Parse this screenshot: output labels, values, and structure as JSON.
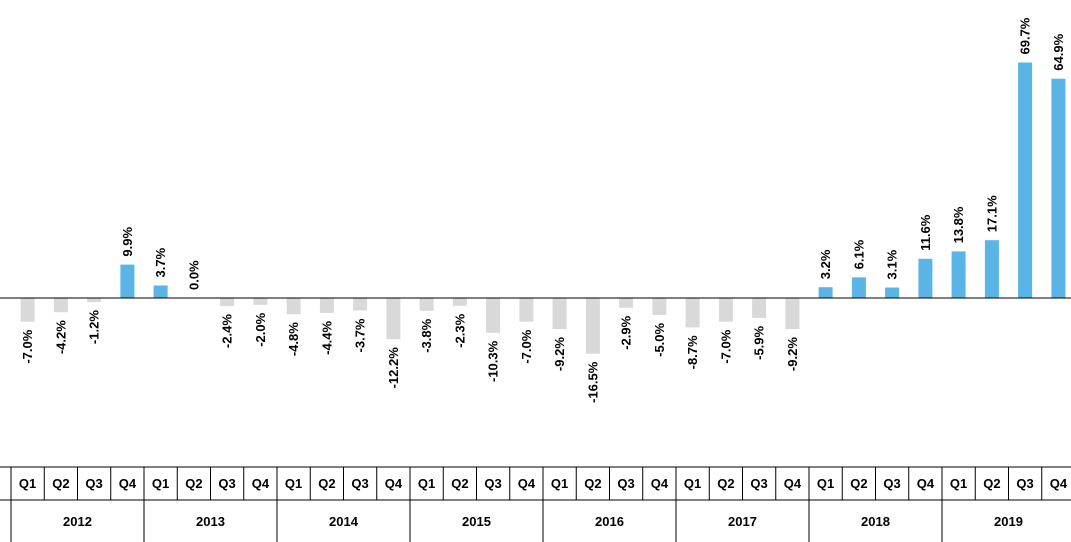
{
  "chart_data": {
    "type": "bar",
    "title": "",
    "xlabel": "",
    "ylabel": "",
    "ylim": [
      -75,
      75
    ],
    "grid": false,
    "legend": "none",
    "colors": {
      "positive": "#5ab4e5",
      "negative": "#d9d9d9",
      "axis": "#000000"
    },
    "years": [
      "2012",
      "2013",
      "2014",
      "2015",
      "2016",
      "2017",
      "2018",
      "2019"
    ],
    "quarters": [
      "Q1",
      "Q2",
      "Q3",
      "Q4"
    ],
    "values": [
      -7.0,
      -4.2,
      -1.2,
      9.9,
      3.7,
      0.0,
      -2.4,
      -2.0,
      -4.8,
      -4.4,
      -3.7,
      -12.2,
      -3.8,
      -2.3,
      -10.3,
      -7.0,
      -9.2,
      -16.5,
      -2.9,
      -5.0,
      -8.7,
      -7.0,
      -5.9,
      -9.2,
      3.2,
      6.1,
      3.1,
      11.6,
      13.8,
      17.1,
      69.7,
      64.9
    ],
    "labels": [
      "-7.0%",
      "-4.2%",
      "-1.2%",
      "9.9%",
      "3.7%",
      "0.0%",
      "-2.4%",
      "-2.0%",
      "-4.8%",
      "-4.4%",
      "-3.7%",
      "-12.2%",
      "-3.8%",
      "-2.3%",
      "-10.3%",
      "-7.0%",
      "-9.2%",
      "-16.5%",
      "-2.9%",
      "-5.0%",
      "-8.7%",
      "-7.0%",
      "-5.9%",
      "-9.2%",
      "3.2%",
      "6.1%",
      "3.1%",
      "11.6%",
      "13.8%",
      "17.1%",
      "69.7%",
      "64.9%"
    ]
  }
}
